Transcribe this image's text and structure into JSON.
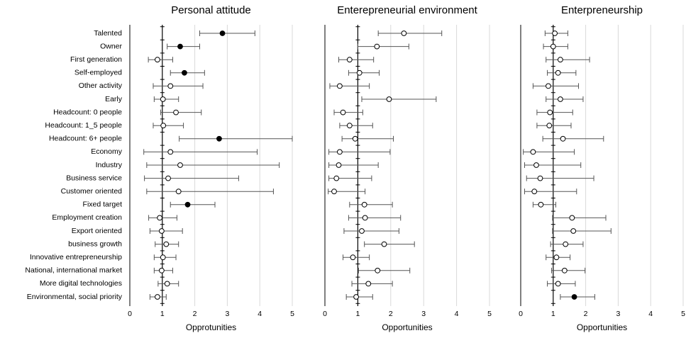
{
  "chart_data": {
    "type": "forest",
    "categories": [
      "Talented",
      "Owner",
      "First generation",
      "Self-employed",
      "Other activity",
      "Early",
      "Headcount: 0 people",
      "Headcount: 1_5 people",
      "Headcount: 6+ people",
      "Economy",
      "Industry",
      "Business service",
      "Customer oriented",
      "Fixed target",
      "Employment creation",
      "Export oriented",
      "business growth",
      "Innovative entrepreneurship",
      "National, international market",
      "More digital technologies",
      "Environmental, social priority"
    ],
    "xlim": [
      0,
      5
    ],
    "xticks": [
      "0",
      "1",
      "2",
      "3",
      "4",
      "5"
    ],
    "reference_line": 1,
    "grid": "vertical",
    "marker_legend": {
      "filled": "significant",
      "open": "not significant"
    },
    "panels": [
      {
        "title": "Personal attitude",
        "xlabel": "Opprotunities",
        "estimate": [
          2.85,
          1.55,
          0.85,
          1.68,
          1.25,
          1.02,
          1.42,
          1.03,
          2.75,
          1.25,
          1.55,
          1.18,
          1.5,
          1.78,
          0.92,
          0.98,
          1.12,
          1.02,
          0.98,
          1.15,
          0.85
        ],
        "lower": [
          2.15,
          1.15,
          0.57,
          1.25,
          0.72,
          0.75,
          0.95,
          0.72,
          1.52,
          0.43,
          0.52,
          0.45,
          0.52,
          1.25,
          0.58,
          0.62,
          0.78,
          0.75,
          0.75,
          0.87,
          0.62
        ],
        "upper": [
          3.85,
          2.15,
          1.32,
          2.3,
          2.25,
          1.5,
          2.2,
          1.65,
          5.1,
          3.92,
          4.6,
          3.35,
          4.42,
          2.62,
          1.45,
          1.62,
          1.5,
          1.42,
          1.32,
          1.5,
          1.12
        ],
        "significant": [
          true,
          true,
          false,
          true,
          false,
          false,
          false,
          false,
          true,
          false,
          false,
          false,
          false,
          true,
          false,
          false,
          false,
          false,
          false,
          false,
          false
        ]
      },
      {
        "title": "Enterepreneurial environment",
        "xlabel": "Opportunities",
        "estimate": [
          2.4,
          1.58,
          0.75,
          1.05,
          0.45,
          1.95,
          0.55,
          0.75,
          0.92,
          0.45,
          0.42,
          0.35,
          0.28,
          1.2,
          1.22,
          1.12,
          1.8,
          0.85,
          1.6,
          1.32,
          0.95
        ],
        "lower": [
          1.62,
          1.0,
          0.42,
          0.72,
          0.15,
          1.12,
          0.28,
          0.45,
          0.52,
          0.12,
          0.12,
          0.12,
          0.1,
          0.75,
          0.72,
          0.58,
          1.2,
          0.55,
          1.02,
          0.82,
          0.65
        ],
        "upper": [
          3.55,
          2.55,
          1.48,
          1.65,
          1.35,
          3.38,
          1.15,
          1.45,
          2.08,
          1.98,
          1.62,
          1.42,
          1.22,
          2.05,
          2.3,
          2.25,
          2.72,
          1.35,
          2.58,
          2.05,
          1.45
        ],
        "significant": [
          false,
          false,
          false,
          false,
          false,
          false,
          false,
          false,
          false,
          false,
          false,
          false,
          false,
          false,
          false,
          false,
          false,
          false,
          false,
          false,
          false
        ]
      },
      {
        "title": "Enterpreneurship",
        "xlabel": "Opportunities",
        "estimate": [
          1.05,
          1.0,
          1.22,
          1.15,
          0.85,
          1.22,
          0.9,
          0.88,
          1.3,
          0.38,
          0.48,
          0.6,
          0.42,
          0.62,
          1.58,
          1.62,
          1.38,
          1.1,
          1.35,
          1.15,
          1.65
        ],
        "lower": [
          0.75,
          0.7,
          0.78,
          0.82,
          0.38,
          0.78,
          0.5,
          0.5,
          0.68,
          0.08,
          0.12,
          0.18,
          0.12,
          0.38,
          0.98,
          0.98,
          0.92,
          0.78,
          0.95,
          0.82,
          1.22
        ],
        "upper": [
          1.45,
          1.45,
          2.12,
          1.7,
          1.78,
          1.92,
          1.6,
          1.55,
          2.55,
          1.65,
          1.85,
          2.25,
          1.72,
          1.08,
          2.62,
          2.78,
          1.92,
          1.52,
          1.98,
          1.68,
          2.28
        ],
        "significant": [
          false,
          false,
          false,
          false,
          false,
          false,
          false,
          false,
          false,
          false,
          false,
          false,
          false,
          false,
          false,
          false,
          false,
          false,
          false,
          false,
          true
        ]
      }
    ]
  }
}
